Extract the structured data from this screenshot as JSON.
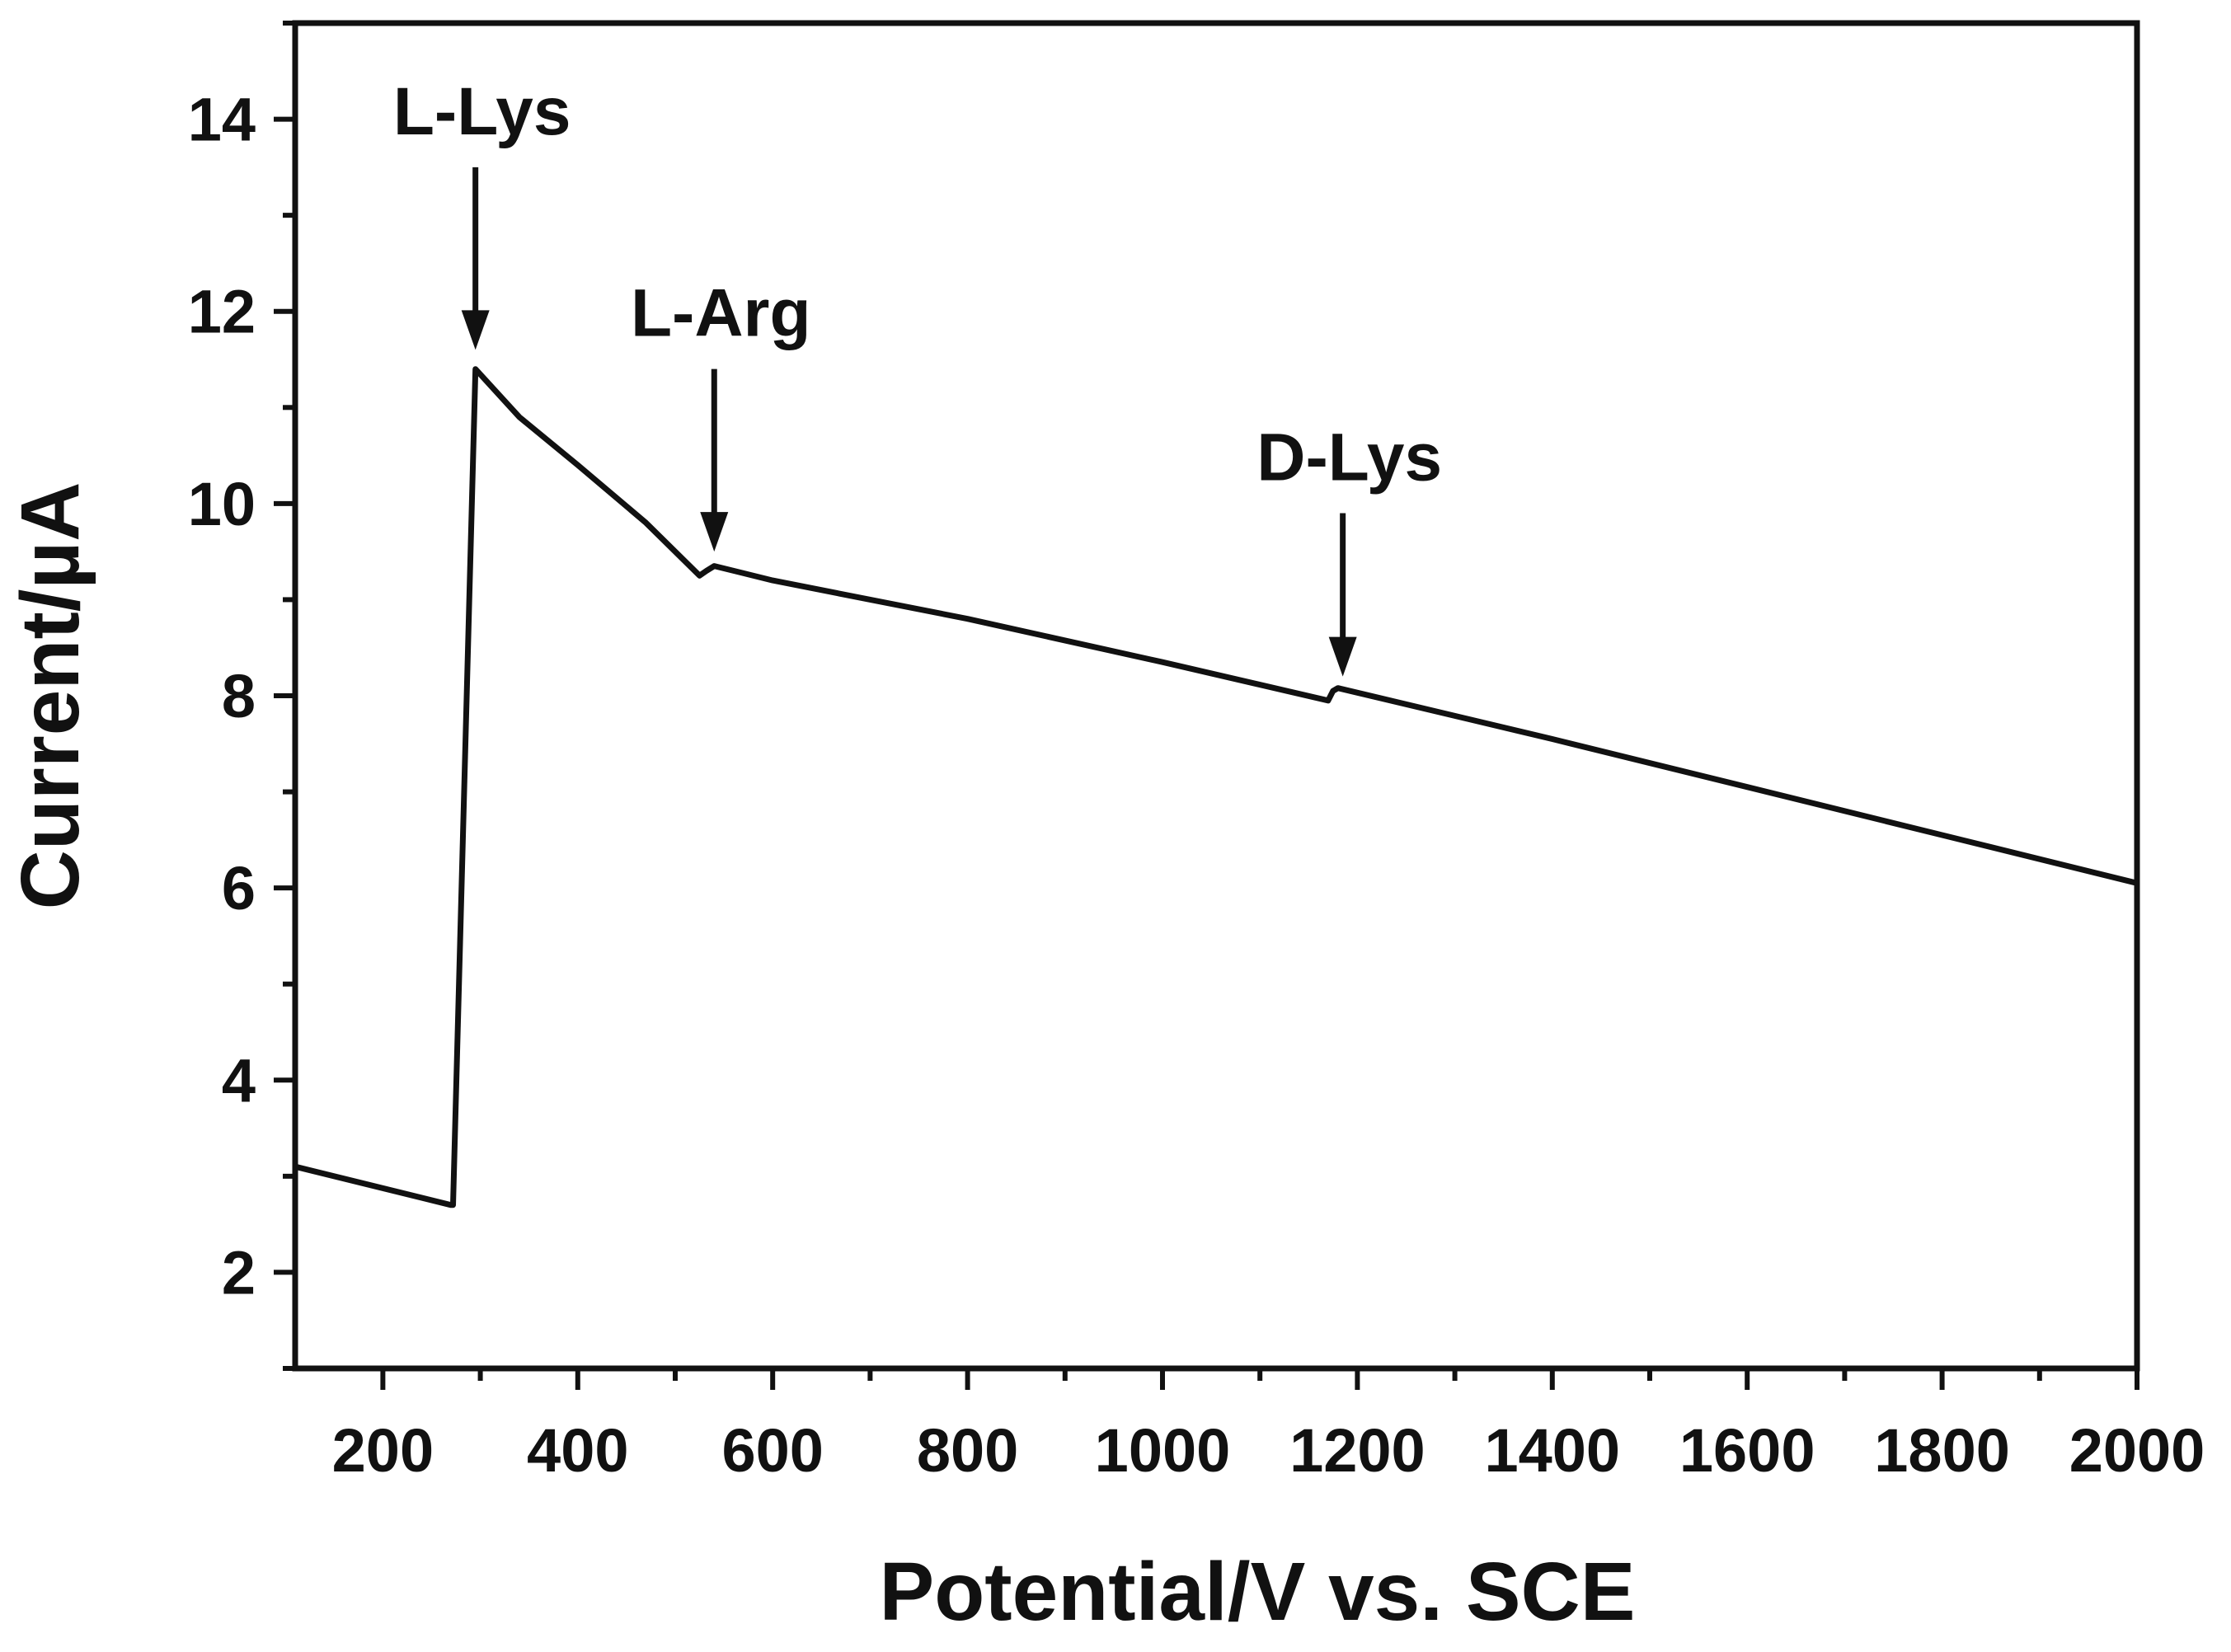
{
  "chart_data": {
    "type": "line",
    "title": "",
    "xlabel": "Potential/V vs. SCE",
    "ylabel": "Current/µA",
    "xlim": [
      110,
      2000
    ],
    "ylim": [
      1,
      15
    ],
    "x_ticks": [
      200,
      400,
      600,
      800,
      1000,
      1200,
      1400,
      1600,
      1800,
      2000
    ],
    "x_minor_step": 100,
    "y_ticks": [
      2,
      4,
      6,
      8,
      10,
      12,
      14
    ],
    "y_minor_step": 1,
    "grid": false,
    "legend": "none",
    "series": [
      {
        "name": "current",
        "x": [
          110,
          270,
          272,
          295,
          340,
          400,
          470,
          525,
          532,
          540,
          600,
          800,
          1000,
          1170,
          1175,
          1180,
          1400,
          1600,
          1800,
          2000
        ],
        "y": [
          3.1,
          2.7,
          2.7,
          11.4,
          10.9,
          10.4,
          9.8,
          9.25,
          9.3,
          9.35,
          9.2,
          8.8,
          8.35,
          7.95,
          8.05,
          8.08,
          7.55,
          7.05,
          6.55,
          6.05
        ]
      }
    ],
    "annotations": [
      {
        "text": "L-Lys",
        "x": 295,
        "y_tip": 11.6,
        "y_top": 13.5
      },
      {
        "text": "L-Arg",
        "x": 540,
        "y_tip": 9.5,
        "y_top": 11.4
      },
      {
        "text": "D-Lys",
        "x": 1185,
        "y_tip": 8.2,
        "y_top": 9.9
      }
    ]
  }
}
